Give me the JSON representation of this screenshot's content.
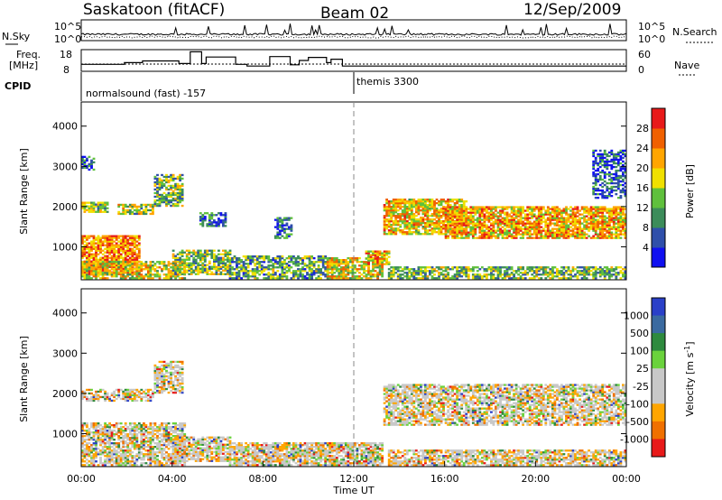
{
  "header": {
    "station": "Saskatoon (fitACF)",
    "beam": "Beam 02",
    "date": "12/Sep/2009"
  },
  "chart_data": [
    {
      "type": "line",
      "panel": "noise",
      "left_label": "N.Sky",
      "right_label": "N.Search",
      "left_ticks": [
        "10^5",
        "10^0"
      ],
      "right_ticks": [
        "10^5",
        "10^0"
      ],
      "xlim": [
        "00:00",
        "24:00"
      ]
    },
    {
      "type": "line",
      "panel": "frequency",
      "left_label": [
        "Freq.",
        "[MHz]"
      ],
      "right_label": "Nave",
      "left_ticks": [
        "18",
        "8"
      ],
      "right_ticks": [
        "60",
        "0"
      ],
      "ylim_left": [
        8,
        18
      ],
      "ylim_right": [
        0,
        60
      ],
      "freq_steps": [
        {
          "t0": 0.0,
          "t1": 1.9,
          "mhz": 11.2
        },
        {
          "t0": 1.9,
          "t1": 2.7,
          "mhz": 12.0
        },
        {
          "t0": 2.7,
          "t1": 4.3,
          "mhz": 12.8
        },
        {
          "t0": 4.3,
          "t1": 4.8,
          "mhz": 11.6
        },
        {
          "t0": 4.8,
          "t1": 5.3,
          "mhz": 17.0
        },
        {
          "t0": 5.3,
          "t1": 5.5,
          "mhz": 11.6
        },
        {
          "t0": 5.5,
          "t1": 6.8,
          "mhz": 14.6
        },
        {
          "t0": 6.8,
          "t1": 7.3,
          "mhz": 11.2
        },
        {
          "t0": 7.3,
          "t1": 8.3,
          "mhz": 10.4
        },
        {
          "t0": 8.3,
          "t1": 9.2,
          "mhz": 14.8
        },
        {
          "t0": 9.2,
          "t1": 9.6,
          "mhz": 11.0
        },
        {
          "t0": 9.6,
          "t1": 10.0,
          "mhz": 13.0
        },
        {
          "t0": 10.0,
          "t1": 10.8,
          "mhz": 14.4
        },
        {
          "t0": 10.8,
          "t1": 11.0,
          "mhz": 12.0
        },
        {
          "t0": 11.0,
          "t1": 11.5,
          "mhz": 13.6
        },
        {
          "t0": 11.5,
          "t1": 24.0,
          "mhz": 10.4
        }
      ],
      "nave_level": 20
    },
    {
      "type": "table",
      "panel": "cpid",
      "label": "CPID",
      "segments": [
        {
          "t0": 0.0,
          "name": "normalsound (fast) -157"
        },
        {
          "t0": 12.0,
          "name": "themis 3300"
        }
      ]
    },
    {
      "type": "heatmap",
      "panel": "power",
      "ylabel": "Slant Range [km]",
      "ylim": [
        180,
        4600
      ],
      "yticks": [
        1000,
        2000,
        3000,
        4000
      ],
      "xlim": [
        0,
        24
      ],
      "colorbar": {
        "label": "Power [dB]",
        "range": [
          0,
          32
        ],
        "ticks": [
          4,
          8,
          12,
          16,
          20,
          24,
          28
        ],
        "colors": [
          "#1010f0",
          "#2f4faa",
          "#3c8c5a",
          "#5fc03c",
          "#f0e000",
          "#ffa500",
          "#f06000",
          "#e81a1a"
        ]
      },
      "regions": [
        {
          "t0": 0.0,
          "t1": 2.6,
          "r0": 300,
          "r1": 1250,
          "intensity": 0.8
        },
        {
          "t0": 0.0,
          "t1": 4.6,
          "r0": 200,
          "r1": 650,
          "intensity": 0.55
        },
        {
          "t0": 0.0,
          "t1": 1.2,
          "r0": 1850,
          "r1": 2100,
          "intensity": 0.45
        },
        {
          "t0": 1.6,
          "t1": 3.2,
          "r0": 1800,
          "r1": 2050,
          "intensity": 0.5
        },
        {
          "t0": 0.0,
          "t1": 0.6,
          "r0": 2900,
          "r1": 3250,
          "intensity": 0.2
        },
        {
          "t0": 3.2,
          "t1": 4.4,
          "r0": 2000,
          "r1": 2800,
          "intensity": 0.4
        },
        {
          "t0": 4.0,
          "t1": 6.5,
          "r0": 300,
          "r1": 900,
          "intensity": 0.45
        },
        {
          "t0": 5.2,
          "t1": 6.3,
          "r0": 1500,
          "r1": 1850,
          "intensity": 0.2
        },
        {
          "t0": 6.5,
          "t1": 10.8,
          "r0": 200,
          "r1": 750,
          "intensity": 0.35
        },
        {
          "t0": 8.5,
          "t1": 9.2,
          "r0": 1200,
          "r1": 1700,
          "intensity": 0.2
        },
        {
          "t0": 10.8,
          "t1": 13.2,
          "r0": 200,
          "r1": 700,
          "intensity": 0.6
        },
        {
          "t0": 12.5,
          "t1": 13.5,
          "r0": 550,
          "r1": 900,
          "intensity": 0.7
        },
        {
          "t0": 13.3,
          "t1": 17.0,
          "r0": 1300,
          "r1": 2200,
          "intensity": 0.65
        },
        {
          "t0": 16.0,
          "t1": 24.0,
          "r0": 1200,
          "r1": 2000,
          "intensity": 0.7
        },
        {
          "t0": 13.5,
          "t1": 24.0,
          "r0": 200,
          "r1": 500,
          "intensity": 0.4
        },
        {
          "t0": 22.5,
          "t1": 24.0,
          "r0": 2200,
          "r1": 3400,
          "intensity": 0.15
        }
      ]
    },
    {
      "type": "heatmap",
      "panel": "velocity",
      "ylabel": "Slant Range [km]",
      "ylim": [
        180,
        4600
      ],
      "yticks": [
        1000,
        2000,
        3000,
        4000
      ],
      "xlim": [
        0,
        24
      ],
      "xlabel": "Time UT",
      "xticks": [
        "00:00",
        "04:00",
        "08:00",
        "12:00",
        "16:00",
        "20:00",
        "00:00"
      ],
      "colorbar": {
        "label": "Velocity [m s^-1]",
        "range": [
          -1250,
          1250
        ],
        "ticks": [
          1000,
          500,
          100,
          25,
          -25,
          -100,
          -500,
          -1000
        ],
        "colors": [
          "#2a40c8",
          "#3a6aa0",
          "#2e8a3e",
          "#6ad23c",
          "#c8c8c8",
          "#c8c8c8",
          "#ffa500",
          "#f07000",
          "#e81a1a"
        ]
      },
      "regions": [
        {
          "t0": 0.0,
          "t1": 4.6,
          "r0": 200,
          "r1": 1250,
          "intensity": 0.5
        },
        {
          "t0": 0.0,
          "t1": 3.2,
          "r0": 1800,
          "r1": 2100,
          "intensity": 0.4
        },
        {
          "t0": 3.2,
          "t1": 4.4,
          "r0": 2000,
          "r1": 2800,
          "intensity": 0.3
        },
        {
          "t0": 4.0,
          "t1": 6.5,
          "r0": 300,
          "r1": 900,
          "intensity": 0.6
        },
        {
          "t0": 6.5,
          "t1": 13.2,
          "r0": 200,
          "r1": 750,
          "intensity": 0.7
        },
        {
          "t0": 13.3,
          "t1": 24.0,
          "r0": 1200,
          "r1": 2200,
          "intensity": 0.45
        },
        {
          "t0": 13.5,
          "t1": 24.0,
          "r0": 200,
          "r1": 600,
          "intensity": 0.5
        }
      ]
    }
  ]
}
